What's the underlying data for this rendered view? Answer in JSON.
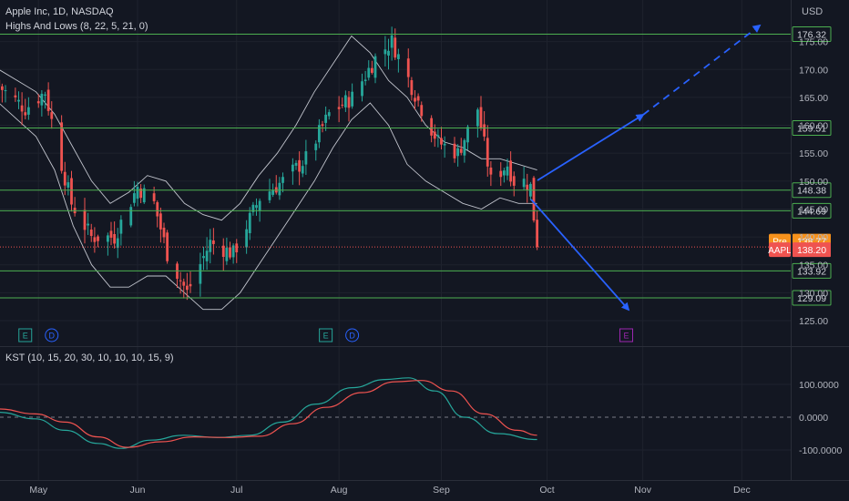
{
  "header": {
    "symbol_title": "Apple Inc, 1D, NASDAQ",
    "indicator_1": "Highs And Lows (8, 22, 5, 21, 0)",
    "indicator_2": "KST (10, 15, 20, 30, 10, 10, 10, 15, 9)",
    "currency": "USD"
  },
  "colors": {
    "background": "#131722",
    "up": "#26a69a",
    "down": "#ef5350",
    "level": "#4caf50",
    "arrow": "#2962ff",
    "band": "#e0e3eb",
    "kst": "#26a69a",
    "kst_signal": "#ef5350",
    "pre": "#f7921c",
    "aapl": "#ef5350"
  },
  "price_badges": [
    {
      "label": "Pre",
      "value": "138.77",
      "price": 138.77,
      "color": "#f7921c"
    },
    {
      "label": "AAPL",
      "value": "138.20",
      "price": 138.2,
      "color": "#ef5350"
    }
  ],
  "price_lines": [
    {
      "value": "176.32",
      "price": 176.32
    },
    {
      "value": "159.51",
      "price": 159.51
    },
    {
      "value": "148.38",
      "price": 148.38
    },
    {
      "value": "144.69",
      "price": 144.69
    },
    {
      "value": "133.92",
      "price": 133.92
    },
    {
      "value": "129.09",
      "price": 129.09
    }
  ],
  "events": [
    {
      "letter": "E",
      "type": "earnings",
      "date": "2022-04-28"
    },
    {
      "letter": "D",
      "type": "dividend",
      "date": "2022-05-06"
    },
    {
      "letter": "E",
      "type": "earnings",
      "date": "2022-07-28"
    },
    {
      "letter": "D",
      "type": "dividend",
      "date": "2022-08-05"
    },
    {
      "letter": "E",
      "type": "earnings-upcoming",
      "date": "2022-10-27"
    }
  ],
  "chart_data": [
    {
      "type": "candlestick",
      "title": "Apple Inc, 1D, NASDAQ",
      "y_unit": "USD",
      "ylim": [
        122.0,
        180.0
      ],
      "y_ticks": [
        125,
        130,
        135,
        140,
        145,
        150,
        155,
        160,
        165,
        170,
        175
      ],
      "y_tick_labels": [
        "125.00",
        "130.00",
        "135.00",
        "140.00",
        "145.00",
        "150.00",
        "155.00",
        "160.00",
        "165.00",
        "170.00",
        "175.00"
      ],
      "x_tick_labels": [
        {
          "label": "May",
          "date": "2022-05-02"
        },
        {
          "label": "Jun",
          "date": "2022-06-01"
        },
        {
          "label": "Jul",
          "date": "2022-07-01"
        },
        {
          "label": "Aug",
          "date": "2022-08-01"
        },
        {
          "label": "Sep",
          "date": "2022-09-01"
        },
        {
          "label": "Oct",
          "date": "2022-10-03"
        },
        {
          "label": "Nov",
          "date": "2022-11-01"
        },
        {
          "label": "Dec",
          "date": "2022-12-01"
        }
      ],
      "close_series": [
        {
          "date": "2022-04-20",
          "close": 167
        },
        {
          "date": "2022-04-28",
          "close": 163
        },
        {
          "date": "2022-05-04",
          "close": 166
        },
        {
          "date": "2022-05-09",
          "close": 153
        },
        {
          "date": "2022-05-12",
          "close": 146
        },
        {
          "date": "2022-05-18",
          "close": 140
        },
        {
          "date": "2022-05-25",
          "close": 140
        },
        {
          "date": "2022-06-01",
          "close": 149
        },
        {
          "date": "2022-06-06",
          "close": 146
        },
        {
          "date": "2022-06-10",
          "close": 137
        },
        {
          "date": "2022-06-16",
          "close": 130
        },
        {
          "date": "2022-06-23",
          "close": 139
        },
        {
          "date": "2022-06-30",
          "close": 137
        },
        {
          "date": "2022-07-08",
          "close": 147
        },
        {
          "date": "2022-07-15",
          "close": 150
        },
        {
          "date": "2022-07-22",
          "close": 154
        },
        {
          "date": "2022-07-29",
          "close": 162
        },
        {
          "date": "2022-08-05",
          "close": 165
        },
        {
          "date": "2022-08-12",
          "close": 172
        },
        {
          "date": "2022-08-17",
          "close": 175
        },
        {
          "date": "2022-08-23",
          "close": 167
        },
        {
          "date": "2022-08-26",
          "close": 163
        },
        {
          "date": "2022-08-31",
          "close": 157
        },
        {
          "date": "2022-09-06",
          "close": 155
        },
        {
          "date": "2022-09-12",
          "close": 163
        },
        {
          "date": "2022-09-16",
          "close": 150
        },
        {
          "date": "2022-09-21",
          "close": 153
        },
        {
          "date": "2022-09-23",
          "close": 150
        },
        {
          "date": "2022-09-26",
          "close": 150
        },
        {
          "date": "2022-09-28",
          "close": 149
        },
        {
          "date": "2022-09-30",
          "close": 138.2
        }
      ],
      "bands": {
        "upper": [
          170,
          168,
          166,
          162,
          156,
          150,
          146,
          148,
          151,
          150,
          146,
          144,
          143,
          146,
          151,
          155,
          160,
          166,
          171,
          176,
          173,
          168,
          165,
          160,
          157,
          156,
          154,
          154,
          153,
          152
        ],
        "lower": [
          164,
          161,
          158,
          152,
          142,
          135,
          131,
          131,
          133,
          133,
          130,
          127,
          127,
          130,
          135,
          140,
          145,
          150,
          156,
          161,
          164,
          160,
          153,
          150,
          148,
          146,
          145,
          147,
          146,
          146
        ]
      }
    },
    {
      "type": "line",
      "title": "KST (10, 15, 20, 30, 10, 10, 10, 15, 9)",
      "ylim": [
        -130,
        135
      ],
      "y_ticks": [
        100,
        0,
        -100
      ],
      "y_tick_labels": [
        "100.0000",
        "0.0000",
        "-100.0000"
      ],
      "series": [
        {
          "color": "#26a69a",
          "points": [
            {
              "date": "2022-04-20",
              "value": 15
            },
            {
              "date": "2022-05-01",
              "value": -5
            },
            {
              "date": "2022-05-10",
              "value": -40
            },
            {
              "date": "2022-05-20",
              "value": -80
            },
            {
              "date": "2022-05-27",
              "value": -95
            },
            {
              "date": "2022-06-05",
              "value": -70
            },
            {
              "date": "2022-06-15",
              "value": -55
            },
            {
              "date": "2022-06-25",
              "value": -62
            },
            {
              "date": "2022-07-05",
              "value": -55
            },
            {
              "date": "2022-07-15",
              "value": -15
            },
            {
              "date": "2022-07-25",
              "value": 40
            },
            {
              "date": "2022-08-05",
              "value": 90
            },
            {
              "date": "2022-08-15",
              "value": 115
            },
            {
              "date": "2022-08-22",
              "value": 120
            },
            {
              "date": "2022-08-30",
              "value": 80
            },
            {
              "date": "2022-09-08",
              "value": 0
            },
            {
              "date": "2022-09-18",
              "value": -50
            },
            {
              "date": "2022-09-30",
              "value": -68
            }
          ]
        },
        {
          "color": "#ef5350",
          "points": [
            {
              "date": "2022-04-20",
              "value": 25
            },
            {
              "date": "2022-05-01",
              "value": 10
            },
            {
              "date": "2022-05-10",
              "value": -15
            },
            {
              "date": "2022-05-20",
              "value": -60
            },
            {
              "date": "2022-05-29",
              "value": -92
            },
            {
              "date": "2022-06-08",
              "value": -75
            },
            {
              "date": "2022-06-18",
              "value": -60
            },
            {
              "date": "2022-06-28",
              "value": -62
            },
            {
              "date": "2022-07-08",
              "value": -58
            },
            {
              "date": "2022-07-18",
              "value": -20
            },
            {
              "date": "2022-07-28",
              "value": 30
            },
            {
              "date": "2022-08-08",
              "value": 75
            },
            {
              "date": "2022-08-18",
              "value": 108
            },
            {
              "date": "2022-08-26",
              "value": 112
            },
            {
              "date": "2022-09-04",
              "value": 80
            },
            {
              "date": "2022-09-14",
              "value": 10
            },
            {
              "date": "2022-09-24",
              "value": -40
            },
            {
              "date": "2022-09-30",
              "value": -55
            }
          ]
        }
      ]
    }
  ]
}
